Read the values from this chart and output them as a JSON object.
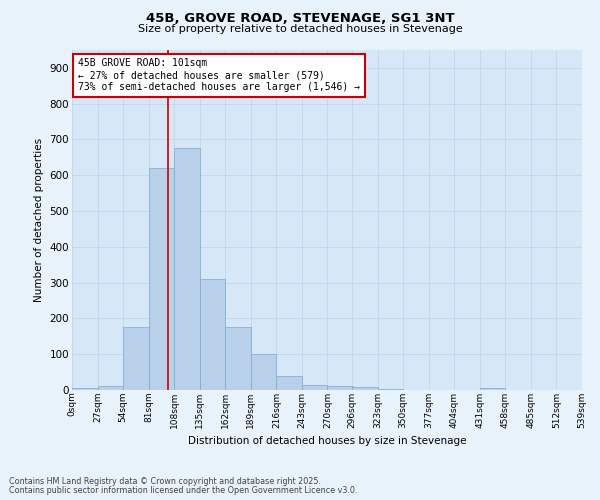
{
  "title_line1": "45B, GROVE ROAD, STEVENAGE, SG1 3NT",
  "title_line2": "Size of property relative to detached houses in Stevenage",
  "xlabel": "Distribution of detached houses by size in Stevenage",
  "ylabel": "Number of detached properties",
  "bin_edges": [
    0,
    27,
    54,
    81,
    108,
    135,
    162,
    189,
    216,
    243,
    270,
    296,
    323,
    350,
    377,
    404,
    431,
    458,
    485,
    512,
    539
  ],
  "bar_heights": [
    5,
    12,
    175,
    620,
    675,
    310,
    175,
    100,
    40,
    13,
    10,
    8,
    2,
    0,
    0,
    0,
    5,
    0,
    0,
    0
  ],
  "bar_color": "#b8d0ea",
  "bar_edge_color": "#7aaad0",
  "property_size": 101,
  "property_line_color": "#cc0000",
  "annotation_text": "45B GROVE ROAD: 101sqm\n← 27% of detached houses are smaller (579)\n73% of semi-detached houses are larger (1,546) →",
  "annotation_box_color": "#ffffff",
  "annotation_box_edge": "#cc0000",
  "ylim": [
    0,
    950
  ],
  "yticks": [
    0,
    100,
    200,
    300,
    400,
    500,
    600,
    700,
    800,
    900
  ],
  "tick_labels": [
    "0sqm",
    "27sqm",
    "54sqm",
    "81sqm",
    "108sqm",
    "135sqm",
    "162sqm",
    "189sqm",
    "216sqm",
    "243sqm",
    "270sqm",
    "296sqm",
    "323sqm",
    "350sqm",
    "377sqm",
    "404sqm",
    "431sqm",
    "458sqm",
    "485sqm",
    "512sqm",
    "539sqm"
  ],
  "grid_color": "#c5d8ec",
  "plot_bg_color": "#d6e8f7",
  "fig_bg_color": "#e8f2fb",
  "footnote_line1": "Contains HM Land Registry data © Crown copyright and database right 2025.",
  "footnote_line2": "Contains public sector information licensed under the Open Government Licence v3.0."
}
